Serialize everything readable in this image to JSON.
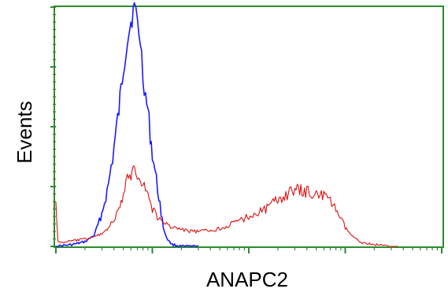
{
  "chart_data": {
    "type": "line",
    "title": "",
    "xlabel": "ANAPC2",
    "ylabel": "Events",
    "x_scale": "log",
    "xlim": [
      1,
      10000
    ],
    "ylim": [
      0,
      256
    ],
    "grid": false,
    "legend": "none",
    "x_major_ticks": [
      1,
      10,
      100,
      1000,
      10000
    ],
    "y_ticks": [
      0,
      64,
      128,
      192,
      256
    ],
    "series": [
      {
        "color": "#1a1aff",
        "x": [
          1,
          1.5,
          2,
          2.5,
          3,
          3.5,
          4,
          4.5,
          5,
          5.5,
          6,
          6.5,
          7,
          7.5,
          8,
          8.5,
          9,
          9.5,
          10,
          11,
          12,
          13,
          14,
          15,
          16,
          18,
          20,
          25,
          30
        ],
        "y": [
          0,
          2,
          5,
          12,
          35,
          65,
          105,
          145,
          190,
          222,
          240,
          256,
          240,
          220,
          185,
          160,
          145,
          120,
          100,
          70,
          45,
          20,
          10,
          5,
          2,
          1,
          0,
          0,
          0
        ]
      },
      {
        "color": "#dd1111",
        "x": [
          1,
          1.05,
          1.1,
          1.5,
          2,
          2.5,
          3,
          3.5,
          4,
          4.5,
          5,
          5.5,
          6,
          6.5,
          7,
          7.5,
          8,
          9,
          10,
          12,
          15,
          20,
          25,
          30,
          40,
          50,
          70,
          100,
          150,
          200,
          250,
          300,
          400,
          500,
          600,
          700,
          800,
          900,
          1000,
          1200,
          1500,
          2000,
          2500,
          3000,
          3500
        ],
        "y": [
          48,
          5,
          4,
          6,
          8,
          10,
          14,
          20,
          28,
          38,
          55,
          70,
          78,
          82,
          80,
          76,
          68,
          55,
          40,
          28,
          22,
          18,
          16,
          16,
          17,
          19,
          25,
          32,
          40,
          50,
          56,
          60,
          58,
          57,
          54,
          48,
          40,
          30,
          20,
          10,
          4,
          2,
          1,
          0,
          0
        ]
      }
    ]
  }
}
